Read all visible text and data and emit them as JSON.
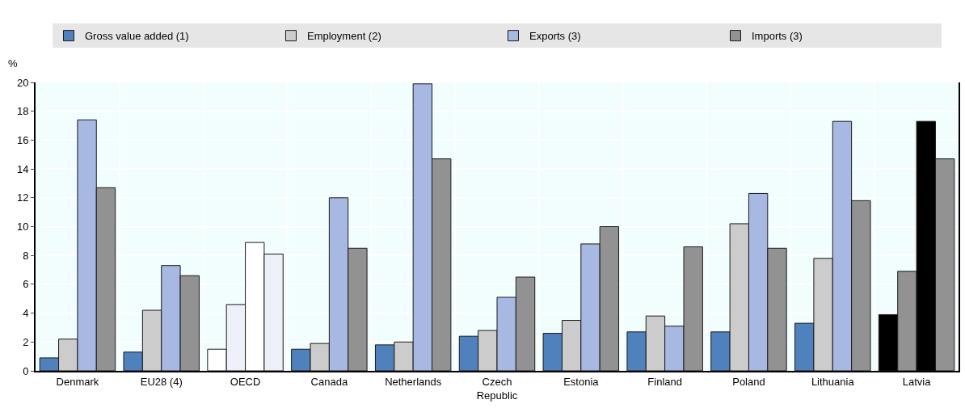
{
  "chart_data": {
    "type": "bar",
    "ylabel": "%",
    "categories": [
      "Denmark",
      "EU28 (4)",
      "OECD",
      "Canada",
      "Netherlands",
      "Czech Republic",
      "Estonia",
      "Finland",
      "Poland",
      "Lithuania",
      "Latvia"
    ],
    "series": [
      {
        "name": "Gross value added (1)",
        "color": "#4f81bd",
        "colors": [
          "#4f81bd",
          "#4f81bd",
          "#ffffff",
          "#4f81bd",
          "#4f81bd",
          "#4f81bd",
          "#4f81bd",
          "#4f81bd",
          "#4f81bd",
          "#4f81bd",
          "#000000"
        ],
        "values": [
          0.9,
          1.3,
          1.5,
          1.5,
          1.8,
          2.4,
          2.6,
          2.7,
          2.7,
          3.3,
          3.9
        ]
      },
      {
        "name": "Employment (2)",
        "color": "#cccccc",
        "colors": [
          "#cccccc",
          "#cccccc",
          "#edf0f8",
          "#cccccc",
          "#cccccc",
          "#cccccc",
          "#cccccc",
          "#cccccc",
          "#cccccc",
          "#cccccc",
          "#929292"
        ],
        "values": [
          2.2,
          4.2,
          4.6,
          1.9,
          2.0,
          2.8,
          3.5,
          3.8,
          10.2,
          7.8,
          6.9
        ]
      },
      {
        "name": "Exports (3)",
        "color": "#a7b9e3",
        "colors": [
          "#a7b9e3",
          "#a7b9e3",
          "#ffffff",
          "#a7b9e3",
          "#a7b9e3",
          "#a7b9e3",
          "#a7b9e3",
          "#a7b9e3",
          "#a7b9e3",
          "#a7b9e3",
          "#000000"
        ],
        "values": [
          17.4,
          7.3,
          8.9,
          12.0,
          19.9,
          5.1,
          8.8,
          3.1,
          12.3,
          17.3,
          17.3
        ]
      },
      {
        "name": "Imports (3)",
        "color": "#929292",
        "colors": [
          "#929292",
          "#929292",
          "#edf0f8",
          "#929292",
          "#929292",
          "#929292",
          "#929292",
          "#929292",
          "#929292",
          "#929292",
          "#929292"
        ],
        "values": [
          12.7,
          6.6,
          8.1,
          8.5,
          14.7,
          6.5,
          10.0,
          8.6,
          8.5,
          11.8,
          14.7
        ]
      }
    ],
    "ylim": [
      0,
      20
    ],
    "yticks": [
      0,
      2,
      4,
      6,
      8,
      10,
      12,
      14,
      16,
      18,
      20
    ],
    "grid": true,
    "legend": "top"
  }
}
